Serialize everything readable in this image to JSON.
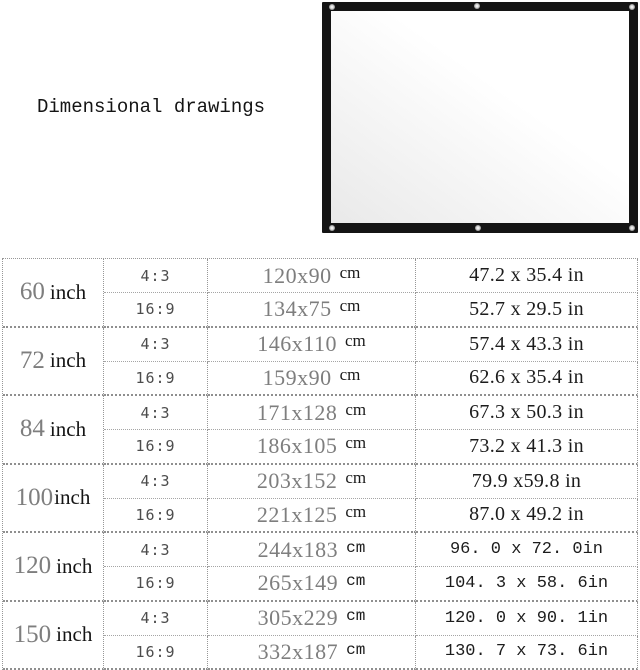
{
  "title": "Dimensional drawings",
  "screen_image": {
    "description": "white projection screen with black border and metal grommets",
    "frame_color": "#141414",
    "surface_color_start": "#ffffff",
    "surface_color_end": "#e9e9e9",
    "grommet_color": "#9a9a9a",
    "grommet_count": 6
  },
  "colors": {
    "background": "#ffffff",
    "muted_number": "#7e7e7e",
    "text": "#1a1a1a",
    "ratio_text": "#4c4c4c",
    "table_border": "#979797"
  },
  "table": {
    "groups": [
      {
        "size": "60",
        "size_unit": "inch",
        "rows": [
          {
            "ratio": "4:3",
            "cm": "120x90",
            "cm_unit": "cm",
            "inches": "47.2 x 35.4 in"
          },
          {
            "ratio": "16:9",
            "cm": "134x75",
            "cm_unit": "cm",
            "inches": "52.7 x 29.5 in"
          }
        ]
      },
      {
        "size": "72",
        "size_unit": "inch",
        "rows": [
          {
            "ratio": "4:3",
            "cm": "146x110",
            "cm_unit": "cm",
            "inches": "57.4 x 43.3 in"
          },
          {
            "ratio": "16:9",
            "cm": "159x90",
            "cm_unit": "cm",
            "inches": "62.6 x 35.4 in"
          }
        ]
      },
      {
        "size": "84",
        "size_unit": "inch",
        "rows": [
          {
            "ratio": "4:3",
            "cm": "171x128",
            "cm_unit": "cm",
            "inches": "67.3 x 50.3 in"
          },
          {
            "ratio": "16:9",
            "cm": "186x105",
            "cm_unit": "cm",
            "inches": "73.2 x 41.3 in"
          }
        ]
      },
      {
        "size": "100",
        "size_unit": "inch",
        "rows": [
          {
            "ratio": "4:3",
            "cm": "203x152",
            "cm_unit": "cm",
            "inches": "79.9 x59.8 in"
          },
          {
            "ratio": "16:9",
            "cm": "221x125",
            "cm_unit": "cm",
            "inches": "87.0 x 49.2 in"
          }
        ]
      },
      {
        "size": "120",
        "size_unit": "inch",
        "rows": [
          {
            "ratio": "4:3",
            "cm": "244x183",
            "cm_unit": "cm",
            "inches": "96. 0 x 72. 0in"
          },
          {
            "ratio": "16:9",
            "cm": "265x149",
            "cm_unit": "cm",
            "inches": "104. 3 x 58. 6in"
          }
        ]
      },
      {
        "size": "150",
        "size_unit": "inch",
        "rows": [
          {
            "ratio": "4:3",
            "cm": "305x229",
            "cm_unit": "cm",
            "inches": "120. 0 x 90. 1in"
          },
          {
            "ratio": "16:9",
            "cm": "332x187",
            "cm_unit": "cm",
            "inches": "130. 7 x 73. 6in"
          }
        ]
      }
    ]
  }
}
